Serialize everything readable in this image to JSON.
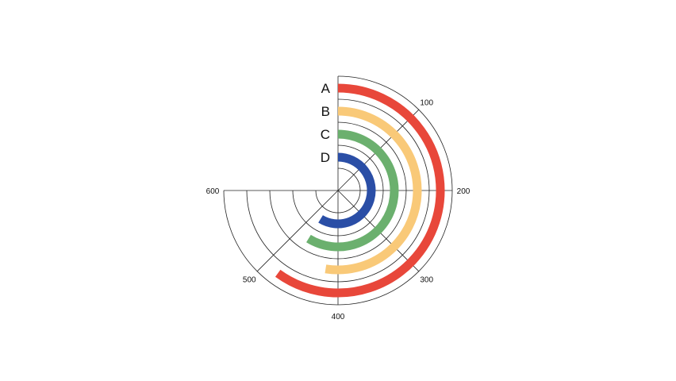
{
  "chart_data": {
    "type": "radial-bar",
    "title": "",
    "axis": {
      "min": 0,
      "max": 600,
      "sweep_degrees": 270,
      "start": "top",
      "direction": "clockwise",
      "ticks": [
        {
          "value": 100,
          "label": "100"
        },
        {
          "value": 200,
          "label": "200"
        },
        {
          "value": 300,
          "label": "300"
        },
        {
          "value": 400,
          "label": "400"
        },
        {
          "value": 500,
          "label": "500"
        },
        {
          "value": 600,
          "label": "600"
        }
      ],
      "grid": true
    },
    "categories": [
      "A",
      "B",
      "C",
      "D"
    ],
    "values": [
      480,
      420,
      470,
      470
    ],
    "colors": [
      "#e8473a",
      "#f9c978",
      "#6bb06e",
      "#2a4ea6"
    ]
  }
}
